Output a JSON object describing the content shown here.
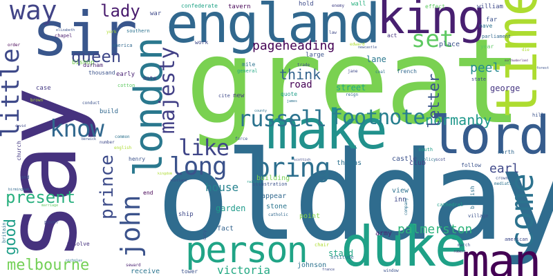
{
  "words": [
    {
      "text": "say",
      "color": "#46327e",
      "vertical": true
    },
    {
      "text": "great",
      "color": "#7ad151",
      "vertical": false
    },
    {
      "text": "oldday",
      "color": "#2f6c8e",
      "vertical": false
    },
    {
      "text": "england",
      "color": "#31688e",
      "vertical": false
    },
    {
      "text": "king",
      "color": "#481f70",
      "vertical": false
    },
    {
      "text": "time",
      "color": "#addc30",
      "vertical": true
    },
    {
      "text": "sir",
      "color": "#39568c",
      "vertical": false
    },
    {
      "text": "make",
      "color": "#21918c",
      "vertical": false
    },
    {
      "text": "lord",
      "color": "#365c8d",
      "vertical": false
    },
    {
      "text": "london",
      "color": "#2a788e",
      "vertical": true
    },
    {
      "text": "duke",
      "color": "#1fa187",
      "vertical": false
    },
    {
      "text": "man",
      "color": "#440154",
      "vertical": false
    },
    {
      "text": "person",
      "color": "#20a486",
      "vertical": false
    },
    {
      "text": "john",
      "color": "#3b528b",
      "vertical": true
    },
    {
      "text": "come",
      "color": "#2c728e",
      "vertical": true
    },
    {
      "text": "little",
      "color": "#3e4989",
      "vertical": true
    },
    {
      "text": "way",
      "color": "#414487",
      "vertical": false
    },
    {
      "text": "know",
      "color": "#31688e",
      "vertical": false
    },
    {
      "text": "bring",
      "color": "#2e6f8e",
      "vertical": false
    },
    {
      "text": "long",
      "color": "#3b528b",
      "vertical": false
    },
    {
      "text": "like",
      "color": "#404688",
      "vertical": false
    },
    {
      "text": "russell",
      "color": "#2c738e",
      "vertical": false
    },
    {
      "text": "footnote",
      "color": "#277f8e",
      "vertical": false
    },
    {
      "text": "set",
      "color": "#5ec962",
      "vertical": false
    },
    {
      "text": "majesty",
      "color": "#424086",
      "vertical": true
    },
    {
      "text": "queen",
      "color": "#3f4889",
      "vertical": false
    },
    {
      "text": "lady",
      "color": "#481b6d",
      "vertical": false
    },
    {
      "text": "normanby",
      "color": "#1f978b",
      "vertical": false
    },
    {
      "text": "prince",
      "color": "#3e4c8a",
      "vertical": true
    },
    {
      "text": "present",
      "color": "#2ab07f",
      "vertical": false
    },
    {
      "text": "melbourne",
      "color": "#73d056",
      "vertical": false
    },
    {
      "text": "good",
      "color": "#1f9e89",
      "vertical": true
    },
    {
      "text": "palmerston",
      "color": "#2fb47c",
      "vertical": false
    },
    {
      "text": "letter",
      "color": "#3a548c",
      "vertical": true
    },
    {
      "text": "think",
      "color": "#33638d",
      "vertical": false
    },
    {
      "text": "pageheading",
      "color": "#440154",
      "vertical": false
    },
    {
      "text": "peel",
      "color": "#23898e",
      "vertical": false
    },
    {
      "text": "earl",
      "color": "#3f4889",
      "vertical": false
    },
    {
      "text": "victoria",
      "color": "#23a983",
      "vertical": false
    },
    {
      "text": "house",
      "color": "#26828e",
      "vertical": false
    },
    {
      "text": "road",
      "color": "#440154",
      "vertical": false
    },
    {
      "text": "street",
      "color": "#22a884",
      "vertical": false
    },
    {
      "text": "george",
      "color": "#453581",
      "vertical": false
    },
    {
      "text": "lane",
      "color": "#2a788e",
      "vertical": false
    },
    {
      "text": "garden",
      "color": "#1f9a8a",
      "vertical": false
    },
    {
      "text": "stand",
      "color": "#22a785",
      "vertical": false
    },
    {
      "text": "thomas",
      "color": "#2d708e",
      "vertical": false
    },
    {
      "text": "johnson",
      "color": "#2c728e",
      "vertical": false
    },
    {
      "text": "receive",
      "color": "#2b748e",
      "vertical": false
    },
    {
      "text": "fact",
      "color": "#33638d",
      "vertical": false
    },
    {
      "text": "inn",
      "color": "#3f4788",
      "vertical": false
    },
    {
      "text": "army",
      "color": "#481f70",
      "vertical": false
    },
    {
      "text": "point",
      "color": "#86d549",
      "vertical": false
    },
    {
      "text": "stone",
      "color": "#2b758e",
      "vertical": false
    },
    {
      "text": "appear",
      "color": "#31688e",
      "vertical": false
    },
    {
      "text": "view",
      "color": "#2d718e",
      "vertical": false
    },
    {
      "text": "building",
      "color": "#7ad151",
      "vertical": false
    },
    {
      "text": "club",
      "color": "#433e85",
      "vertical": false
    },
    {
      "text": "castle",
      "color": "#3b528b",
      "vertical": false
    },
    {
      "text": "place",
      "color": "#3b528b",
      "vertical": false
    },
    {
      "text": "war",
      "color": "#3e4989",
      "vertical": false
    },
    {
      "text": "tavern",
      "color": "#440154",
      "vertical": false
    },
    {
      "text": "confederate",
      "color": "#20a386",
      "vertical": false
    },
    {
      "text": "william",
      "color": "#3e4989",
      "vertical": false
    },
    {
      "text": "far",
      "color": "#3b528b",
      "vertical": false
    },
    {
      "text": "nave",
      "color": "#2c728e",
      "vertical": false
    },
    {
      "text": "parliament",
      "color": "#31688e",
      "vertical": false
    },
    {
      "text": "effect",
      "color": "#5ec962",
      "vertical": false
    },
    {
      "text": "enemy",
      "color": "#424086",
      "vertical": false
    },
    {
      "text": "wall",
      "color": "#2ab07f",
      "vertical": false
    },
    {
      "text": "hold",
      "color": "#3e4c8a",
      "vertical": false
    },
    {
      "text": "act",
      "color": "#46327e",
      "vertical": false
    },
    {
      "text": "trade",
      "color": "#3e4989",
      "vertical": false
    },
    {
      "text": "french",
      "color": "#31688e",
      "vertical": false
    },
    {
      "text": "mile",
      "color": "#2c728e",
      "vertical": false
    },
    {
      "text": "general",
      "color": "#22a884",
      "vertical": false
    },
    {
      "text": "large",
      "color": "#3b528b",
      "vertical": false
    },
    {
      "text": "quote",
      "color": "#1f9e89",
      "vertical": false
    },
    {
      "text": "cite",
      "color": "#3e4989",
      "vertical": false
    },
    {
      "text": "new",
      "color": "#453581",
      "vertical": false
    },
    {
      "text": "note",
      "color": "#46327e",
      "vertical": false
    },
    {
      "text": "early",
      "color": "#482173",
      "vertical": false
    },
    {
      "text": "thousand",
      "color": "#3b528b",
      "vertical": false
    },
    {
      "text": "bishop",
      "color": "#7ad151",
      "vertical": false
    },
    {
      "text": "america",
      "color": "#31688e",
      "vertical": false
    },
    {
      "text": "southern",
      "color": "#2c728e",
      "vertical": false
    },
    {
      "text": "work",
      "color": "#3e4989",
      "vertical": false
    },
    {
      "text": "chapel",
      "color": "#481b6d",
      "vertical": false
    },
    {
      "text": "elizabeth",
      "color": "#3b528b",
      "vertical": false
    },
    {
      "text": "order",
      "color": "#440154",
      "vertical": false
    },
    {
      "text": "york",
      "color": "#addc30",
      "vertical": false
    },
    {
      "text": "durham",
      "color": "#481f70",
      "vertical": false
    },
    {
      "text": "case",
      "color": "#443983",
      "vertical": false
    },
    {
      "text": "build",
      "color": "#31688e",
      "vertical": false
    },
    {
      "text": "cotton",
      "color": "#5ec962",
      "vertical": false
    },
    {
      "text": "conduct",
      "color": "#3b528b",
      "vertical": false
    },
    {
      "text": "common",
      "color": "#2c728e",
      "vertical": false
    },
    {
      "text": "number",
      "color": "#3e4989",
      "vertical": false
    },
    {
      "text": "english",
      "color": "#addc30",
      "vertical": false
    },
    {
      "text": "henry",
      "color": "#3b528b",
      "vertical": false
    },
    {
      "text": "end",
      "color": "#440154",
      "vertical": false
    },
    {
      "text": "ship",
      "color": "#3e4989",
      "vertical": false
    },
    {
      "text": "sea",
      "color": "#2c728e",
      "vertical": false
    },
    {
      "text": "seward",
      "color": "#481f70",
      "vertical": false
    },
    {
      "text": "tower",
      "color": "#3b528b",
      "vertical": false
    },
    {
      "text": "resolve",
      "color": "#46327e",
      "vertical": false
    },
    {
      "text": "power",
      "color": "#3e4989",
      "vertical": false
    },
    {
      "text": "church",
      "color": "#443983",
      "vertical": true
    },
    {
      "text": "britain",
      "color": "#2c728e",
      "vertical": true
    },
    {
      "text": "and",
      "color": "#3b528b",
      "vertical": false
    },
    {
      "text": "birmingham",
      "color": "#31688e",
      "vertical": false
    },
    {
      "text": "marriage",
      "color": "#5ec962",
      "vertical": false
    },
    {
      "text": "david",
      "color": "#3e4989",
      "vertical": false
    },
    {
      "text": "brown",
      "color": "#addc30",
      "vertical": false
    },
    {
      "text": "nicholas",
      "color": "#2c728e",
      "vertical": false
    },
    {
      "text": "cathedral",
      "color": "#1f9e89",
      "vertical": false
    },
    {
      "text": "village",
      "color": "#3b528b",
      "vertical": false
    },
    {
      "text": "british",
      "color": "#2c728e",
      "vertical": true
    },
    {
      "text": "american",
      "color": "#3e4989",
      "vertical": false
    },
    {
      "text": "march",
      "color": "#3b528b",
      "vertical": false
    },
    {
      "text": "robert",
      "color": "#481f70",
      "vertical": false
    },
    {
      "text": "chair",
      "color": "#addc30",
      "vertical": false
    },
    {
      "text": "window",
      "color": "#3b528b",
      "vertical": false
    },
    {
      "text": "attitude",
      "color": "#2c728e",
      "vertical": false
    },
    {
      "text": "france",
      "color": "#3e4989",
      "vertical": false
    },
    {
      "text": "catholic",
      "color": "#31688e",
      "vertical": false
    },
    {
      "text": "company",
      "color": "#2c728e",
      "vertical": true
    },
    {
      "text": "crown",
      "color": "#3b528b",
      "vertical": false
    },
    {
      "text": "mediation",
      "color": "#2c728e",
      "vertical": false
    },
    {
      "text": "north",
      "color": "#31688e",
      "vertical": false
    },
    {
      "text": "follow",
      "color": "#3b528b",
      "vertical": false
    },
    {
      "text": "scot",
      "color": "#3e4989",
      "vertical": false
    },
    {
      "text": "policy",
      "color": "#2c728e",
      "vertical": false
    },
    {
      "text": "south",
      "color": "#1f9e89",
      "vertical": false
    },
    {
      "text": "hill",
      "color": "#3b528b",
      "vertical": false
    },
    {
      "text": "state",
      "color": "#3e4989",
      "vertical": false
    },
    {
      "text": "forest",
      "color": "#3b528b",
      "vertical": false
    },
    {
      "text": "northumberland",
      "color": "#481f70",
      "vertical": false
    },
    {
      "text": "die",
      "color": "#addc30",
      "vertical": false
    },
    {
      "text": "scottish",
      "color": "#3e4989",
      "vertical": false
    },
    {
      "text": "coast",
      "color": "#2c728e",
      "vertical": false
    },
    {
      "text": "force",
      "color": "#3b528b",
      "vertical": false
    },
    {
      "text": "railway",
      "color": "#1f9e89",
      "vertical": false
    },
    {
      "text": "illustration",
      "color": "#3b528b",
      "vertical": false
    },
    {
      "text": "county",
      "color": "#2c728e",
      "vertical": false
    },
    {
      "text": "kingdom",
      "color": "#addc30",
      "vertical": false
    },
    {
      "text": "scotland",
      "color": "#3e4989",
      "vertical": false
    },
    {
      "text": "duty",
      "color": "#3b528b",
      "vertical": true
    },
    {
      "text": "coal",
      "color": "#2c728e",
      "vertical": false
    },
    {
      "text": "jane",
      "color": "#3e4989",
      "vertical": false
    },
    {
      "text": "reign",
      "color": "#31688e",
      "vertical": false
    },
    {
      "text": "james",
      "color": "#2c728e",
      "vertical": false
    },
    {
      "text": "newcastle",
      "color": "#3b528b",
      "vertical": false
    },
    {
      "text": "edward",
      "color": "#addc30",
      "vertical": false
    },
    {
      "text": "law",
      "color": "#3e4989",
      "vertical": false
    },
    {
      "text": "berwick",
      "color": "#3b528b",
      "vertical": false
    },
    {
      "text": "year",
      "color": "#5ec962",
      "vertical": false
    }
  ]
}
